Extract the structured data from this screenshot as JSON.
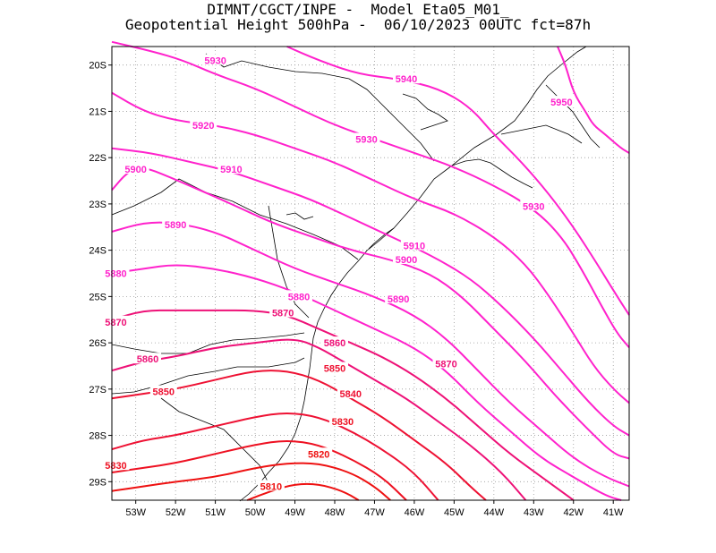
{
  "title": {
    "line1": "DIMNT/CGCT/INPE -  Model Eta05_M01_",
    "line2": "Geopotential Height 500hPa -  06/10/2023 00UTC fct=87h"
  },
  "chart_data": {
    "type": "contour",
    "title": "Geopotential Height 500hPa",
    "xlabel": "",
    "ylabel": "",
    "xlim": [
      -53.6,
      -40.6
    ],
    "ylim": [
      -29.4,
      -19.6
    ],
    "grid": true,
    "grid_style": "dotted",
    "x_ticks": [
      "53W",
      "52W",
      "51W",
      "50W",
      "49W",
      "48W",
      "47W",
      "46W",
      "45W",
      "44W",
      "43W",
      "42W",
      "41W"
    ],
    "y_ticks": [
      "20S",
      "21S",
      "22S",
      "23S",
      "24S",
      "25S",
      "26S",
      "27S",
      "28S",
      "29S"
    ],
    "contour_interval": 10,
    "levels": [
      {
        "value": 5950,
        "label": "5950",
        "color": "#ff22cc",
        "points": [
          [
            -42.4,
            -19.6
          ],
          [
            -42.2,
            -20.0
          ],
          [
            -42.0,
            -20.6
          ],
          [
            -41.7,
            -21.0
          ],
          [
            -41.5,
            -21.3
          ],
          [
            -41.2,
            -21.5
          ],
          [
            -40.8,
            -21.8
          ],
          [
            -40.6,
            -21.9
          ]
        ]
      },
      {
        "value": 5940,
        "label": "5940",
        "color": "#ff22cc",
        "points": [
          [
            -49.2,
            -19.6
          ],
          [
            -48.4,
            -19.9
          ],
          [
            -47.4,
            -20.2
          ],
          [
            -46.4,
            -20.3
          ],
          [
            -45.4,
            -20.5
          ],
          [
            -44.6,
            -20.9
          ],
          [
            -44.0,
            -21.5
          ],
          [
            -43.3,
            -22.1
          ],
          [
            -42.6,
            -22.8
          ],
          [
            -42.0,
            -23.5
          ],
          [
            -41.4,
            -24.3
          ],
          [
            -40.9,
            -25.0
          ],
          [
            -40.6,
            -25.4
          ]
        ]
      },
      {
        "value": 5930,
        "label": "5930",
        "color": "#ff22cc",
        "points": [
          [
            -53.6,
            -19.5
          ],
          [
            -52.6,
            -19.7
          ],
          [
            -51.8,
            -19.9
          ],
          [
            -51.0,
            -20.2
          ],
          [
            -50.0,
            -20.5
          ],
          [
            -49.0,
            -20.9
          ],
          [
            -48.0,
            -21.3
          ],
          [
            -47.0,
            -21.6
          ],
          [
            -46.0,
            -21.9
          ],
          [
            -45.0,
            -22.2
          ],
          [
            -44.0,
            -22.6
          ],
          [
            -43.0,
            -23.1
          ],
          [
            -42.3,
            -23.7
          ],
          [
            -41.8,
            -24.4
          ],
          [
            -41.3,
            -25.2
          ],
          [
            -40.9,
            -25.8
          ],
          [
            -40.6,
            -26.1
          ]
        ]
      },
      {
        "value": 5920,
        "label": "5920",
        "color": "#ff22cc",
        "points": [
          [
            -53.6,
            -20.6
          ],
          [
            -52.8,
            -21.0
          ],
          [
            -52.0,
            -21.2
          ],
          [
            -51.0,
            -21.3
          ],
          [
            -50.0,
            -21.5
          ],
          [
            -49.0,
            -21.8
          ],
          [
            -48.0,
            -22.1
          ],
          [
            -47.0,
            -22.5
          ],
          [
            -46.0,
            -22.9
          ],
          [
            -45.0,
            -23.2
          ],
          [
            -44.0,
            -23.7
          ],
          [
            -43.2,
            -24.3
          ],
          [
            -42.6,
            -25.0
          ],
          [
            -42.0,
            -25.8
          ],
          [
            -41.5,
            -26.5
          ],
          [
            -41.0,
            -27.0
          ],
          [
            -40.6,
            -27.3
          ]
        ]
      },
      {
        "value": 5910,
        "label": "5910",
        "color": "#ff22cc",
        "points": [
          [
            -53.6,
            -21.8
          ],
          [
            -52.6,
            -21.9
          ],
          [
            -51.6,
            -22.1
          ],
          [
            -50.6,
            -22.3
          ],
          [
            -49.6,
            -22.6
          ],
          [
            -48.6,
            -22.9
          ],
          [
            -47.6,
            -23.3
          ],
          [
            -46.6,
            -23.7
          ],
          [
            -45.6,
            -24.1
          ],
          [
            -44.6,
            -24.6
          ],
          [
            -43.8,
            -25.2
          ],
          [
            -43.0,
            -25.9
          ],
          [
            -42.3,
            -26.6
          ],
          [
            -41.6,
            -27.3
          ],
          [
            -41.0,
            -27.8
          ],
          [
            -40.6,
            -28.0
          ]
        ]
      },
      {
        "value": 5900,
        "label": "5900",
        "color": "#ff22cc",
        "points": [
          [
            -53.6,
            -22.7
          ],
          [
            -53.2,
            -22.3
          ],
          [
            -52.8,
            -22.2
          ],
          [
            -52.2,
            -22.4
          ],
          [
            -51.4,
            -22.7
          ],
          [
            -50.6,
            -23.0
          ],
          [
            -49.6,
            -23.4
          ],
          [
            -48.6,
            -23.7
          ],
          [
            -47.6,
            -24.0
          ],
          [
            -46.6,
            -24.2
          ],
          [
            -45.6,
            -24.5
          ],
          [
            -44.8,
            -25.0
          ],
          [
            -44.0,
            -25.7
          ],
          [
            -43.2,
            -26.4
          ],
          [
            -42.4,
            -27.2
          ],
          [
            -41.6,
            -27.9
          ],
          [
            -41.0,
            -28.4
          ],
          [
            -40.6,
            -28.5
          ]
        ]
      },
      {
        "value": 5890,
        "label": "5890",
        "color": "#ff22cc",
        "points": [
          [
            -53.6,
            -23.6
          ],
          [
            -52.8,
            -23.4
          ],
          [
            -52.0,
            -23.4
          ],
          [
            -51.0,
            -23.6
          ],
          [
            -50.0,
            -24.0
          ],
          [
            -49.0,
            -24.4
          ],
          [
            -48.0,
            -24.7
          ],
          [
            -47.0,
            -25.0
          ],
          [
            -46.0,
            -25.4
          ],
          [
            -45.2,
            -25.9
          ],
          [
            -44.4,
            -26.6
          ],
          [
            -43.6,
            -27.3
          ],
          [
            -42.8,
            -27.9
          ],
          [
            -42.0,
            -28.5
          ],
          [
            -41.2,
            -28.9
          ],
          [
            -40.6,
            -29.1
          ]
        ]
      },
      {
        "value": 5880,
        "label": "5880",
        "color": "#ff22cc",
        "points": [
          [
            -53.6,
            -24.5
          ],
          [
            -52.8,
            -24.4
          ],
          [
            -52.0,
            -24.3
          ],
          [
            -51.0,
            -24.4
          ],
          [
            -50.0,
            -24.6
          ],
          [
            -49.0,
            -24.9
          ],
          [
            -48.0,
            -25.3
          ],
          [
            -47.0,
            -25.7
          ],
          [
            -46.0,
            -26.1
          ],
          [
            -45.2,
            -26.6
          ],
          [
            -44.4,
            -27.3
          ],
          [
            -43.6,
            -27.9
          ],
          [
            -42.8,
            -28.5
          ],
          [
            -42.0,
            -28.9
          ],
          [
            -41.2,
            -29.3
          ],
          [
            -40.8,
            -29.4
          ]
        ]
      },
      {
        "value": 5870,
        "label": "5870",
        "color": "#ee1177",
        "points": [
          [
            -53.6,
            -25.5
          ],
          [
            -52.8,
            -25.3
          ],
          [
            -52.0,
            -25.3
          ],
          [
            -51.0,
            -25.3
          ],
          [
            -50.0,
            -25.3
          ],
          [
            -49.2,
            -25.4
          ],
          [
            -48.4,
            -25.7
          ],
          [
            -47.6,
            -26.0
          ],
          [
            -46.8,
            -26.3
          ],
          [
            -46.0,
            -26.7
          ],
          [
            -45.2,
            -27.2
          ],
          [
            -44.4,
            -27.8
          ],
          [
            -43.6,
            -28.4
          ],
          [
            -42.8,
            -28.9
          ],
          [
            -42.0,
            -29.4
          ]
        ]
      },
      {
        "value": 5860,
        "label": "5860",
        "color": "#ee1177",
        "points": [
          [
            -53.6,
            -26.6
          ],
          [
            -52.8,
            -26.4
          ],
          [
            -52.0,
            -26.3
          ],
          [
            -51.0,
            -26.1
          ],
          [
            -50.0,
            -26.0
          ],
          [
            -49.0,
            -25.9
          ],
          [
            -48.4,
            -26.1
          ],
          [
            -47.8,
            -26.4
          ],
          [
            -47.0,
            -26.8
          ],
          [
            -46.2,
            -27.2
          ],
          [
            -45.4,
            -27.7
          ],
          [
            -44.6,
            -28.2
          ],
          [
            -43.8,
            -28.8
          ],
          [
            -43.2,
            -29.4
          ]
        ]
      },
      {
        "value": 5850,
        "label": "5850",
        "color": "#ee1133",
        "points": [
          [
            -53.6,
            -27.2
          ],
          [
            -52.8,
            -27.1
          ],
          [
            -52.0,
            -27.0
          ],
          [
            -51.0,
            -26.8
          ],
          [
            -50.0,
            -26.6
          ],
          [
            -49.2,
            -26.6
          ],
          [
            -48.4,
            -26.8
          ],
          [
            -47.6,
            -27.2
          ],
          [
            -46.8,
            -27.6
          ],
          [
            -46.0,
            -28.1
          ],
          [
            -45.2,
            -28.6
          ],
          [
            -44.6,
            -29.1
          ],
          [
            -44.2,
            -29.4
          ]
        ]
      },
      {
        "value": 5840,
        "label": "5840",
        "color": "#ee1133",
        "points": [
          [
            -53.6,
            -28.3
          ],
          [
            -52.8,
            -28.1
          ],
          [
            -52.0,
            -28.0
          ],
          [
            -51.0,
            -27.8
          ],
          [
            -50.0,
            -27.6
          ],
          [
            -49.2,
            -27.5
          ],
          [
            -48.4,
            -27.6
          ],
          [
            -47.6,
            -27.9
          ],
          [
            -46.8,
            -28.3
          ],
          [
            -46.0,
            -28.8
          ],
          [
            -45.4,
            -29.4
          ]
        ]
      },
      {
        "value": 5830,
        "label": "5830",
        "color": "#ee1122",
        "points": [
          [
            -53.6,
            -28.8
          ],
          [
            -52.8,
            -28.7
          ],
          [
            -52.0,
            -28.6
          ],
          [
            -51.0,
            -28.4
          ],
          [
            -50.0,
            -28.2
          ],
          [
            -49.2,
            -28.1
          ],
          [
            -48.4,
            -28.2
          ],
          [
            -47.6,
            -28.5
          ],
          [
            -46.8,
            -28.9
          ],
          [
            -46.2,
            -29.4
          ]
        ]
      },
      {
        "value": 5820,
        "label": "5820",
        "color": "#ee1111",
        "points": [
          [
            -53.6,
            -29.2
          ],
          [
            -52.8,
            -29.1
          ],
          [
            -52.0,
            -29.0
          ],
          [
            -51.0,
            -28.9
          ],
          [
            -50.0,
            -28.7
          ],
          [
            -49.2,
            -28.6
          ],
          [
            -48.4,
            -28.6
          ],
          [
            -47.6,
            -28.8
          ],
          [
            -47.0,
            -29.1
          ],
          [
            -46.6,
            -29.4
          ]
        ]
      },
      {
        "value": 5810,
        "label": "5810",
        "color": "#ee1111",
        "points": [
          [
            -50.2,
            -29.4
          ],
          [
            -49.6,
            -29.2
          ],
          [
            -49.0,
            -29.05
          ],
          [
            -48.4,
            -29.05
          ],
          [
            -47.8,
            -29.2
          ],
          [
            -47.4,
            -29.4
          ]
        ]
      }
    ],
    "labels": [
      {
        "text": "5930",
        "x": -51.0,
        "y": -19.9,
        "color": "#ff22cc"
      },
      {
        "text": "5940",
        "x": -46.2,
        "y": -20.3,
        "color": "#ff22cc"
      },
      {
        "text": "5950",
        "x": -42.3,
        "y": -20.8,
        "color": "#ff22cc"
      },
      {
        "text": "5920",
        "x": -51.3,
        "y": -21.3,
        "color": "#ff22cc"
      },
      {
        "text": "5930",
        "x": -47.2,
        "y": -21.6,
        "color": "#ff22cc"
      },
      {
        "text": "5910",
        "x": -50.6,
        "y": -22.25,
        "color": "#ff22cc"
      },
      {
        "text": "5900",
        "x": -53.0,
        "y": -22.25,
        "color": "#ff22cc"
      },
      {
        "text": "5930",
        "x": -43.0,
        "y": -23.05,
        "color": "#ff22cc"
      },
      {
        "text": "5890",
        "x": -52.0,
        "y": -23.45,
        "color": "#ff22cc"
      },
      {
        "text": "5910",
        "x": -46.0,
        "y": -23.9,
        "color": "#ff22cc"
      },
      {
        "text": "5900",
        "x": -46.2,
        "y": -24.2,
        "color": "#ff22cc"
      },
      {
        "text": "5880",
        "x": -53.5,
        "y": -24.5,
        "color": "#ff22cc"
      },
      {
        "text": "5880",
        "x": -48.9,
        "y": -25.0,
        "color": "#ff22cc"
      },
      {
        "text": "5890",
        "x": -46.4,
        "y": -25.05,
        "color": "#ff22cc"
      },
      {
        "text": "5870",
        "x": -49.3,
        "y": -25.35,
        "color": "#ee1177"
      },
      {
        "text": "5870",
        "x": -53.5,
        "y": -25.55,
        "color": "#ee1177"
      },
      {
        "text": "5860",
        "x": -48.0,
        "y": -26.0,
        "color": "#ee1177"
      },
      {
        "text": "5860",
        "x": -52.7,
        "y": -26.35,
        "color": "#ee1177"
      },
      {
        "text": "5870",
        "x": -45.2,
        "y": -26.45,
        "color": "#ee1177"
      },
      {
        "text": "5850",
        "x": -48.0,
        "y": -26.55,
        "color": "#ee1133"
      },
      {
        "text": "5850",
        "x": -52.3,
        "y": -27.05,
        "color": "#ee1133"
      },
      {
        "text": "5840",
        "x": -47.6,
        "y": -27.1,
        "color": "#ee1133"
      },
      {
        "text": "5830",
        "x": -47.8,
        "y": -27.7,
        "color": "#ee1122"
      },
      {
        "text": "5830",
        "x": -53.5,
        "y": -28.65,
        "color": "#ee1122"
      },
      {
        "text": "5820",
        "x": -48.4,
        "y": -28.4,
        "color": "#ee1111"
      },
      {
        "text": "5810",
        "x": -49.6,
        "y": -29.1,
        "color": "#ee1111"
      }
    ],
    "coastline_color": "#000000"
  }
}
